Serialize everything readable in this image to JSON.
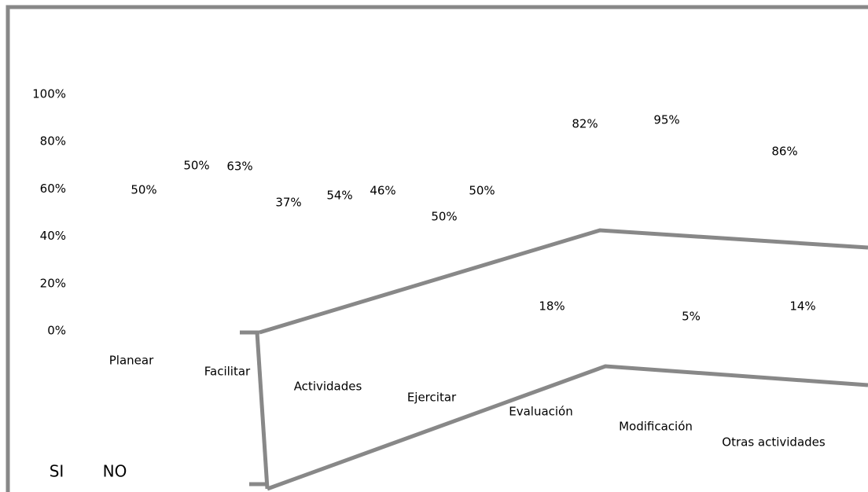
{
  "chart_data": {
    "type": "bar",
    "categories": [
      "Planear",
      "Facilitar",
      "Actividades",
      "Ejercitar",
      "Evaluación",
      "Modificación",
      "Otras actividades"
    ],
    "series": [
      {
        "name": "SI",
        "values": [
          50,
          63,
          54,
          50,
          82,
          95,
          86
        ],
        "value_labels": [
          "50%",
          "63%",
          "54%",
          "50%",
          "82%",
          "95%",
          "86%"
        ]
      },
      {
        "name": "NO",
        "values": [
          50,
          37,
          46,
          50,
          18,
          5,
          14
        ],
        "value_labels": [
          "50%",
          "37%",
          "46%",
          "50%",
          "18%",
          "5%",
          "14%"
        ]
      }
    ],
    "ylim": [
      0,
      100
    ],
    "yticks": [
      {
        "value": 0,
        "label": "0%"
      },
      {
        "value": 20,
        "label": "20%"
      },
      {
        "value": 40,
        "label": "40%"
      },
      {
        "value": 60,
        "label": "60%"
      },
      {
        "value": 80,
        "label": "80%"
      },
      {
        "value": 100,
        "label": "100%"
      }
    ]
  }
}
